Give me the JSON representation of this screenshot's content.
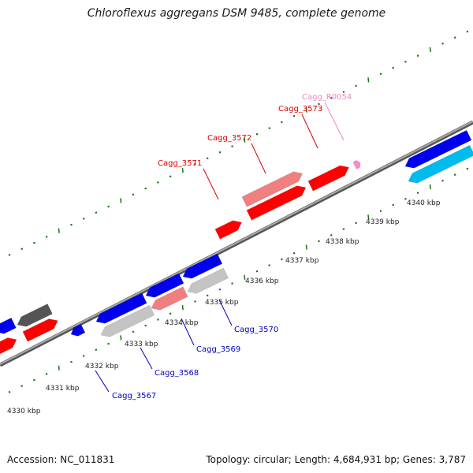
{
  "title": "Chloroflexus aggregans DSM 9485, complete genome",
  "footer": {
    "accession": "Accession: NC_011831",
    "summary": "Topology: circular; Length: 4,684,931 bp; Genes: 3,787"
  },
  "colors": {
    "forward_cds": "#ff0000",
    "forward_cds_light": "#f08080",
    "reverse_cds": "#0000ee",
    "reverse_cds_light": "#c4c4c4",
    "reverse_special": "#00bbee",
    "rna": "#ff88c8",
    "backbone": "#888888",
    "ticks": "#117711",
    "label_forward": "#dd0000",
    "label_reverse": "#0000bb",
    "label_rna": "#ee88bb"
  },
  "tick_labels": [
    "4330 kbp",
    "4331 kbp",
    "4332 kbp",
    "4333 kbp",
    "4334 kbp",
    "4335 kbp",
    "4336 kbp",
    "4337 kbp",
    "4338 kbp",
    "4339 kbp",
    "4340 kbp"
  ],
  "gene_labels_forward": [
    {
      "text": "Cagg_3571",
      "kind": "forward"
    },
    {
      "text": "Cagg_3572",
      "kind": "forward"
    },
    {
      "text": "Cagg_3573",
      "kind": "forward"
    },
    {
      "text": "Cagg_R0054",
      "kind": "rna"
    }
  ],
  "gene_labels_reverse": [
    {
      "text": "Cagg_3567"
    },
    {
      "text": "Cagg_3568"
    },
    {
      "text": "Cagg_3569"
    },
    {
      "text": "Cagg_3570"
    }
  ]
}
